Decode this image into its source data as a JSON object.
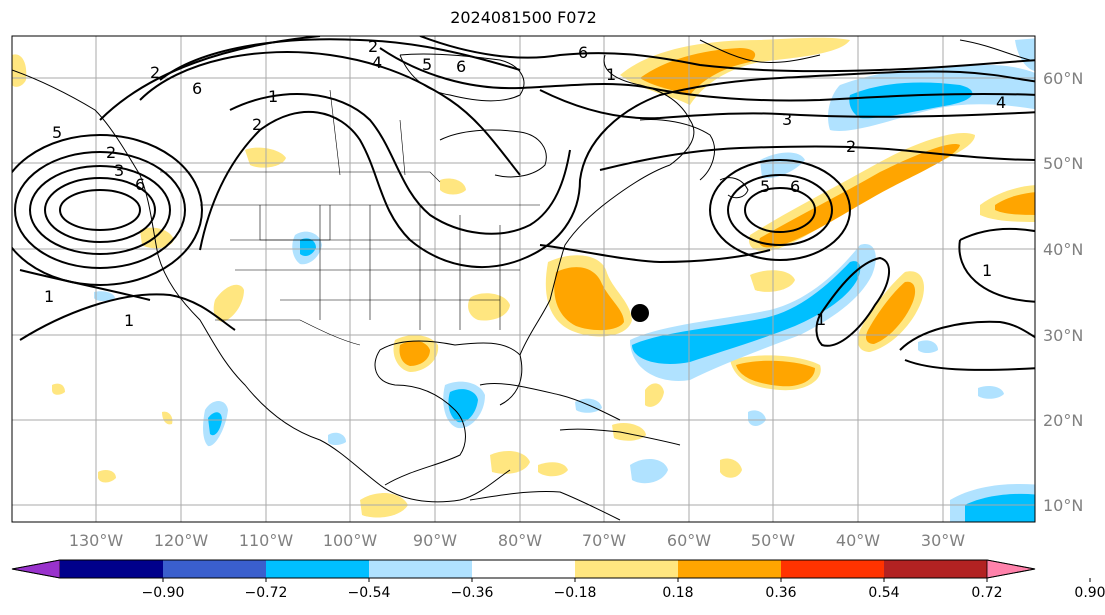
{
  "title": "2024081500 F072",
  "map": {
    "lon_ticks": [
      "130°W",
      "120°W",
      "110°W",
      "100°W",
      "90°W",
      "80°W",
      "70°W",
      "60°W",
      "50°W",
      "40°W",
      "30°W"
    ],
    "lat_ticks": [
      "60°N",
      "50°N",
      "40°N",
      "30°N",
      "20°N",
      "10°N"
    ],
    "grid": true,
    "projection": "equirectangular",
    "extent_lon": [
      -137,
      -16
    ],
    "extent_lat": [
      7,
      65
    ],
    "contour_color": "#000000",
    "marker": {
      "name": "storm-center",
      "lon": -66.5,
      "lat": 32.5,
      "color": "#000000"
    }
  },
  "contour_labels": [
    "2",
    "4",
    "5",
    "6",
    "6",
    "1",
    "2",
    "6",
    "2",
    "5",
    "6",
    "2",
    "1",
    "3",
    "2",
    "5",
    "6",
    "1",
    "1",
    "1",
    "1",
    "3",
    "4"
  ],
  "colorbar": {
    "ticks": [
      "−0.90",
      "−0.72",
      "−0.54",
      "−0.36",
      "−0.18",
      "0.18",
      "0.36",
      "0.54",
      "0.72",
      "0.90"
    ],
    "colors": [
      "#9932cc",
      "#00008b",
      "#3a5fcd",
      "#00bfff",
      "#b0e2ff",
      "#ffffff",
      "#ffe680",
      "#ffa500",
      "#ff3300",
      "#b22222",
      "#ff82ab"
    ]
  }
}
